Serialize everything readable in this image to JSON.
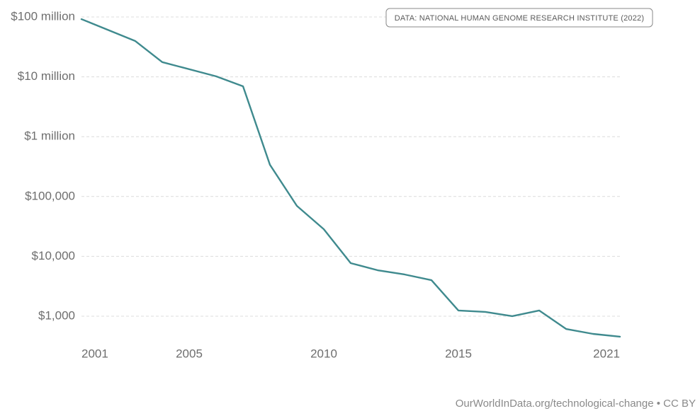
{
  "chart_data": {
    "type": "line",
    "annotation": "DATA: NATIONAL HUMAN GENOME RESEARCH INSTITUTE (2022)",
    "footer": "OurWorldInData.org/technological-change • CC BY",
    "x": [
      2001,
      2003,
      2004,
      2006,
      2007,
      2008,
      2009,
      2010,
      2011,
      2012,
      2013,
      2014,
      2015,
      2016,
      2017,
      2018,
      2019,
      2020,
      2021
    ],
    "series": [
      {
        "color": "#3f8a8e",
        "values": [
          92000000,
          39600000,
          17600000,
          10200000,
          6950000,
          339000,
          69800,
          28400,
          7700,
          5860,
          4980,
          4000,
          1245,
          1180,
          1000,
          1245,
          612,
          506,
          454
        ]
      }
    ],
    "xlim": [
      2001,
      2021
    ],
    "xticks": [
      2001,
      2005,
      2010,
      2015,
      2021
    ],
    "ylim": [
      310,
      100000000
    ],
    "yticks": [
      {
        "value": 1000,
        "label": "$1,000"
      },
      {
        "value": 10000,
        "label": "$10,000"
      },
      {
        "value": 100000,
        "label": "$100,000"
      },
      {
        "value": 1000000,
        "label": "$1 million"
      },
      {
        "value": 10000000,
        "label": "$10 million"
      },
      {
        "value": 100000000,
        "label": "$100 million"
      }
    ],
    "log_scale": true,
    "grid": true
  }
}
